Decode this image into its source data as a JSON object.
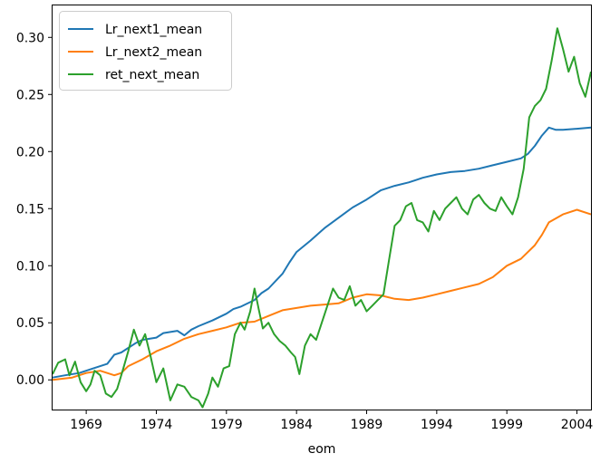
{
  "chart_data": {
    "type": "line",
    "title": "",
    "xlabel": "eom",
    "ylabel": "",
    "xlim": [
      1966.6,
      2005.0
    ],
    "ylim": [
      -0.026,
      0.328
    ],
    "grid": false,
    "legend_position": "top-left",
    "x_ticks": [
      1969,
      1974,
      1979,
      1984,
      1989,
      1994,
      1999,
      2004
    ],
    "x_tick_labels": [
      "1969",
      "1974",
      "1979",
      "1984",
      "1989",
      "1994",
      "1999",
      "2004"
    ],
    "y_ticks": [
      0.0,
      0.05,
      0.1,
      0.15,
      0.2,
      0.25,
      0.3
    ],
    "y_tick_labels": [
      "0.00",
      "0.05",
      "0.10",
      "0.15",
      "0.20",
      "0.25",
      "0.30"
    ],
    "series": [
      {
        "name": "Lr_next1_mean",
        "color": "#1f77b4",
        "x": [
          1966.6,
          1967.5,
          1968.5,
          1969.5,
          1970.5,
          1971.0,
          1971.5,
          1972.0,
          1972.5,
          1973.0,
          1974.0,
          1974.5,
          1975.5,
          1976.0,
          1976.5,
          1977.0,
          1978.0,
          1979.0,
          1979.5,
          1980.0,
          1981.0,
          1981.5,
          1982.0,
          1983.0,
          1983.5,
          1984.0,
          1985.0,
          1986.0,
          1987.0,
          1988.0,
          1989.0,
          1990.0,
          1991.0,
          1992.0,
          1992.5,
          1993.0,
          1994.0,
          1995.0,
          1996.0,
          1997.0,
          1998.0,
          1999.0,
          2000.0,
          2000.5,
          2001.0,
          2001.5,
          2002.0,
          2002.5,
          2003.0,
          2004.0,
          2005.0
        ],
        "y": [
          0.002,
          0.004,
          0.006,
          0.01,
          0.014,
          0.022,
          0.024,
          0.028,
          0.032,
          0.035,
          0.037,
          0.041,
          0.043,
          0.039,
          0.044,
          0.047,
          0.052,
          0.058,
          0.062,
          0.064,
          0.07,
          0.076,
          0.08,
          0.093,
          0.103,
          0.112,
          0.122,
          0.133,
          0.142,
          0.151,
          0.158,
          0.166,
          0.17,
          0.173,
          0.175,
          0.177,
          0.18,
          0.182,
          0.183,
          0.185,
          0.188,
          0.191,
          0.194,
          0.198,
          0.205,
          0.214,
          0.221,
          0.219,
          0.219,
          0.22,
          0.221
        ]
      },
      {
        "name": "Lr_next2_mean",
        "color": "#ff7f0e",
        "x": [
          1966.6,
          1968.0,
          1969.0,
          1970.0,
          1971.0,
          1971.5,
          1972.0,
          1973.0,
          1974.0,
          1975.0,
          1976.0,
          1977.0,
          1978.0,
          1979.0,
          1980.0,
          1981.0,
          1982.0,
          1983.0,
          1984.0,
          1985.0,
          1986.0,
          1987.0,
          1988.0,
          1989.0,
          1990.0,
          1991.0,
          1992.0,
          1993.0,
          1994.0,
          1995.0,
          1996.0,
          1997.0,
          1998.0,
          1999.0,
          2000.0,
          2001.0,
          2001.5,
          2002.0,
          2003.0,
          2004.0,
          2005.0
        ],
        "y": [
          0.0,
          0.002,
          0.006,
          0.008,
          0.004,
          0.006,
          0.012,
          0.018,
          0.025,
          0.03,
          0.036,
          0.04,
          0.043,
          0.046,
          0.05,
          0.051,
          0.056,
          0.061,
          0.063,
          0.065,
          0.066,
          0.067,
          0.072,
          0.075,
          0.074,
          0.071,
          0.07,
          0.072,
          0.075,
          0.078,
          0.081,
          0.084,
          0.09,
          0.1,
          0.106,
          0.118,
          0.127,
          0.138,
          0.145,
          0.149,
          0.145
        ]
      },
      {
        "name": "ret_next_mean",
        "color": "#2ca02c",
        "x": [
          1966.6,
          1967.0,
          1967.5,
          1967.8,
          1968.2,
          1968.6,
          1969.0,
          1969.3,
          1969.6,
          1970.0,
          1970.4,
          1970.8,
          1971.2,
          1971.6,
          1972.0,
          1972.4,
          1972.8,
          1973.2,
          1973.6,
          1974.0,
          1974.5,
          1975.0,
          1975.5,
          1976.0,
          1976.5,
          1977.0,
          1977.3,
          1977.7,
          1978.0,
          1978.4,
          1978.8,
          1979.2,
          1979.6,
          1980.0,
          1980.3,
          1980.7,
          1981.0,
          1981.3,
          1981.6,
          1982.0,
          1982.4,
          1982.8,
          1983.2,
          1983.6,
          1983.9,
          1984.2,
          1984.6,
          1985.0,
          1985.4,
          1985.8,
          1986.2,
          1986.6,
          1987.0,
          1987.4,
          1987.8,
          1988.2,
          1988.6,
          1989.0,
          1989.4,
          1989.8,
          1990.2,
          1990.6,
          1991.0,
          1991.4,
          1991.8,
          1992.2,
          1992.6,
          1993.0,
          1993.4,
          1993.8,
          1994.2,
          1994.6,
          1995.0,
          1995.4,
          1995.8,
          1996.2,
          1996.6,
          1997.0,
          1997.4,
          1997.8,
          1998.2,
          1998.6,
          1999.0,
          1999.4,
          1999.8,
          2000.2,
          2000.6,
          2001.0,
          2001.4,
          2001.8,
          2002.2,
          2002.6,
          2003.0,
          2003.4,
          2003.8,
          2004.2,
          2004.6,
          2005.0
        ],
        "y": [
          0.005,
          0.015,
          0.018,
          0.004,
          0.016,
          -0.002,
          -0.01,
          -0.004,
          0.008,
          0.004,
          -0.012,
          -0.015,
          -0.008,
          0.008,
          0.025,
          0.044,
          0.03,
          0.04,
          0.02,
          -0.002,
          0.01,
          -0.018,
          -0.004,
          -0.006,
          -0.015,
          -0.018,
          -0.024,
          -0.012,
          0.002,
          -0.006,
          0.01,
          0.012,
          0.04,
          0.05,
          0.044,
          0.06,
          0.08,
          0.062,
          0.045,
          0.05,
          0.04,
          0.034,
          0.03,
          0.024,
          0.02,
          0.005,
          0.03,
          0.04,
          0.035,
          0.05,
          0.065,
          0.08,
          0.072,
          0.07,
          0.082,
          0.065,
          0.07,
          0.06,
          0.065,
          0.07,
          0.075,
          0.105,
          0.135,
          0.14,
          0.152,
          0.155,
          0.14,
          0.138,
          0.13,
          0.148,
          0.14,
          0.15,
          0.155,
          0.16,
          0.15,
          0.145,
          0.158,
          0.162,
          0.155,
          0.15,
          0.148,
          0.16,
          0.152,
          0.145,
          0.16,
          0.185,
          0.23,
          0.24,
          0.245,
          0.255,
          0.28,
          0.308,
          0.29,
          0.27,
          0.283,
          0.26,
          0.248,
          0.27
        ]
      }
    ]
  }
}
